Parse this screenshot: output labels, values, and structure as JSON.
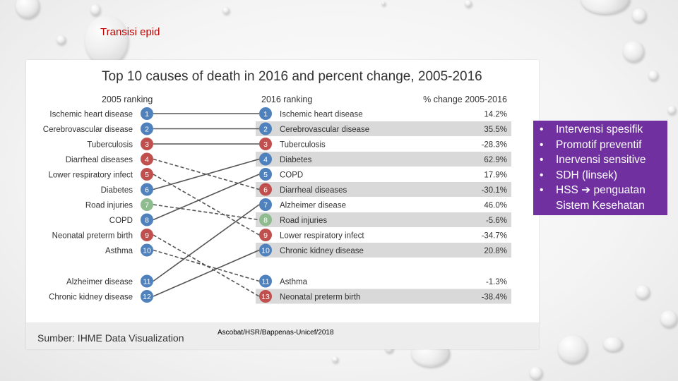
{
  "slide": {
    "title": "Transisi epid",
    "credit": "Ascobat/HSR/Bappenas-Unicef/2018"
  },
  "bullets": [
    {
      "text": "Intervensi spesifik",
      "sub": ""
    },
    {
      "text": "Promotif preventif",
      "sub": ""
    },
    {
      "text": "Inervensi sensitive",
      "sub": ""
    },
    {
      "text": "SDH (linsek)",
      "sub": ""
    },
    {
      "text": "HSS ➔ penguatan",
      "sub": "Sistem Kesehatan"
    }
  ],
  "colors": {
    "title_red": "#c00000",
    "panel_purple": "#7030a0",
    "badge_red": "#c0504d",
    "badge_blue": "#4f81bd",
    "badge_green": "#8fbc8f",
    "row_shade": "#d9d9d9",
    "line_up": "#555555",
    "line_down": "#555555"
  },
  "chart_data": {
    "type": "table",
    "title": "Top 10 causes of death in 2016 and percent change, 2005-2016",
    "source": "Sumber: IHME Data Visualization",
    "headers": {
      "left": "2005 ranking",
      "right": "2016 ranking",
      "change": "% change 2005-2016"
    },
    "rank_2005": [
      {
        "rank": 1,
        "cause": "Ischemic heart disease",
        "group": "ncd"
      },
      {
        "rank": 2,
        "cause": "Cerebrovascular disease",
        "group": "ncd"
      },
      {
        "rank": 3,
        "cause": "Tuberculosis",
        "group": "communicable"
      },
      {
        "rank": 4,
        "cause": "Diarrheal diseases",
        "group": "communicable"
      },
      {
        "rank": 5,
        "cause": "Lower respiratory infect",
        "group": "communicable"
      },
      {
        "rank": 6,
        "cause": "Diabetes",
        "group": "ncd"
      },
      {
        "rank": 7,
        "cause": "Road injuries",
        "group": "injury"
      },
      {
        "rank": 8,
        "cause": "COPD",
        "group": "ncd"
      },
      {
        "rank": 9,
        "cause": "Neonatal preterm birth",
        "group": "communicable"
      },
      {
        "rank": 10,
        "cause": "Asthma",
        "group": "ncd"
      },
      {
        "rank": 11,
        "cause": "Alzheimer disease",
        "group": "ncd"
      },
      {
        "rank": 12,
        "cause": "Chronic kidney disease",
        "group": "ncd"
      }
    ],
    "rank_2016": [
      {
        "rank": 1,
        "cause": "Ischemic heart disease",
        "change": "14.2%",
        "group": "ncd",
        "shaded": false
      },
      {
        "rank": 2,
        "cause": "Cerebrovascular disease",
        "change": "35.5%",
        "group": "ncd",
        "shaded": true
      },
      {
        "rank": 3,
        "cause": "Tuberculosis",
        "change": "-28.3%",
        "group": "communicable",
        "shaded": false
      },
      {
        "rank": 4,
        "cause": "Diabetes",
        "change": "62.9%",
        "group": "ncd",
        "shaded": true
      },
      {
        "rank": 5,
        "cause": "COPD",
        "change": "17.9%",
        "group": "ncd",
        "shaded": false
      },
      {
        "rank": 6,
        "cause": "Diarrheal diseases",
        "change": "-30.1%",
        "group": "communicable",
        "shaded": true
      },
      {
        "rank": 7,
        "cause": "Alzheimer disease",
        "change": "46.0%",
        "group": "ncd",
        "shaded": false
      },
      {
        "rank": 8,
        "cause": "Road injuries",
        "change": "-5.6%",
        "group": "injury",
        "shaded": true
      },
      {
        "rank": 9,
        "cause": "Lower respiratory infect",
        "change": "-34.7%",
        "group": "communicable",
        "shaded": false
      },
      {
        "rank": 10,
        "cause": "Chronic kidney disease",
        "change": "20.8%",
        "group": "ncd",
        "shaded": true
      },
      {
        "rank": 11,
        "cause": "Asthma",
        "change": "-1.3%",
        "group": "ncd",
        "shaded": false
      },
      {
        "rank": 13,
        "cause": "Neonatal preterm birth",
        "change": "-38.4%",
        "group": "communicable",
        "shaded": true
      }
    ],
    "connections": [
      {
        "from": 1,
        "to": 1,
        "style": "solid"
      },
      {
        "from": 2,
        "to": 2,
        "style": "solid"
      },
      {
        "from": 3,
        "to": 3,
        "style": "solid"
      },
      {
        "from": 4,
        "to": 6,
        "style": "dashed"
      },
      {
        "from": 5,
        "to": 9,
        "style": "dashed"
      },
      {
        "from": 6,
        "to": 4,
        "style": "solid"
      },
      {
        "from": 7,
        "to": 8,
        "style": "dashed"
      },
      {
        "from": 8,
        "to": 5,
        "style": "solid"
      },
      {
        "from": 9,
        "to": 13,
        "style": "dashed"
      },
      {
        "from": 10,
        "to": 11,
        "style": "dashed"
      },
      {
        "from": 11,
        "to": 7,
        "style": "solid"
      },
      {
        "from": 12,
        "to": 10,
        "style": "solid"
      }
    ]
  }
}
